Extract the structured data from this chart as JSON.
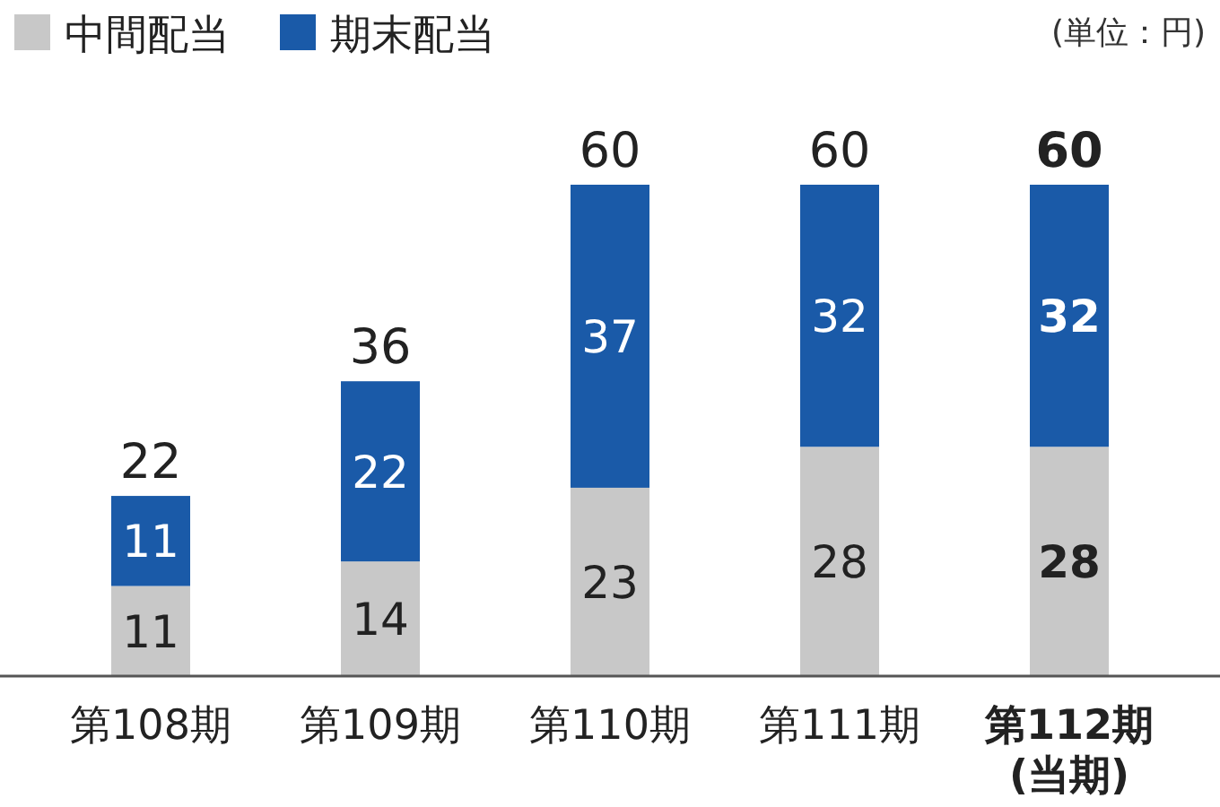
{
  "chart_data": {
    "type": "bar",
    "stacked": true,
    "data_labels": true,
    "legend": "top left",
    "annotations": [
      "(単位：円)"
    ],
    "categories": [
      "第108期",
      "第109期",
      "第110期",
      "第111期",
      "第112期\n(当期)"
    ],
    "series": [
      {
        "name": "中間配当",
        "color": "#c8c8c8",
        "values": [
          11,
          14,
          23,
          28,
          28
        ]
      },
      {
        "name": "期末配当",
        "color": "#1a5aa8",
        "values": [
          11,
          22,
          37,
          32,
          32
        ]
      }
    ],
    "totals": [
      "22",
      "36",
      "60",
      "60",
      "60"
    ]
  }
}
